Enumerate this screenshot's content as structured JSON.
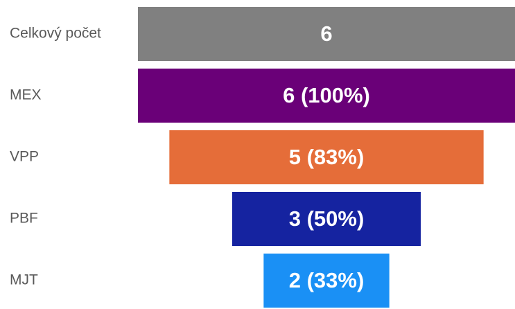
{
  "chart_data": {
    "type": "funnel",
    "categories": [
      "Celkový počet",
      "MEX",
      "VPP",
      "PBF",
      "MJT"
    ],
    "values": [
      6,
      6,
      5,
      3,
      2
    ],
    "value_labels": [
      "6",
      "6 (100%)",
      "5 (83%)",
      "3 (50%)",
      "2 (33%)"
    ],
    "colors": [
      "#808080",
      "#6a0078",
      "#e56d39",
      "#1523a0",
      "#1a90f5"
    ]
  }
}
